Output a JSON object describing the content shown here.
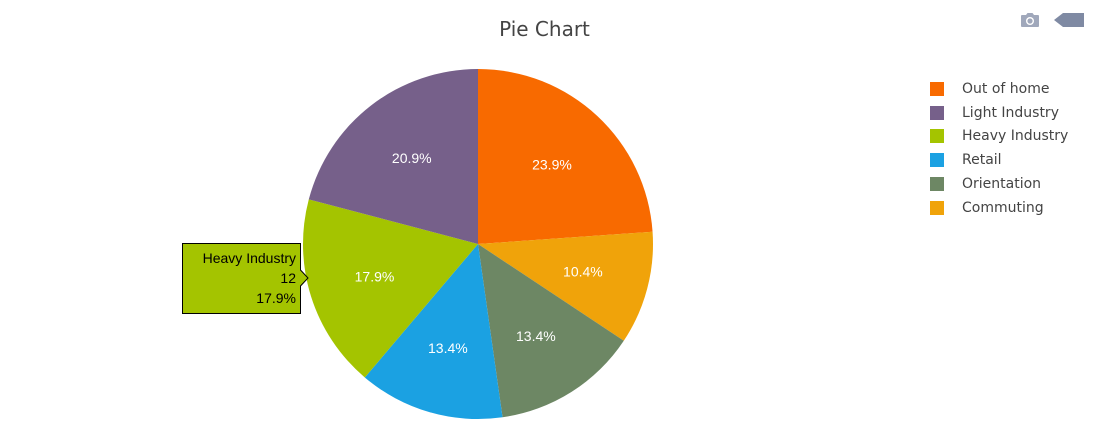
{
  "chart_data": {
    "type": "pie",
    "title": "Pie Chart",
    "slices": [
      {
        "label": "Out of home",
        "value": 16,
        "percent_label": "23.9%",
        "color": "#f86a00"
      },
      {
        "label": "Commuting",
        "value": 7,
        "percent_label": "10.4%",
        "color": "#f0a30a"
      },
      {
        "label": "Orientation",
        "value": 9,
        "percent_label": "13.4%",
        "color": "#6d8764"
      },
      {
        "label": "Retail",
        "value": 9,
        "percent_label": "13.4%",
        "color": "#1ba1e2"
      },
      {
        "label": "Heavy Industry",
        "value": 12,
        "percent_label": "17.9%",
        "color": "#a4c400"
      },
      {
        "label": "Light Industry",
        "value": 14,
        "percent_label": "20.9%",
        "color": "#76608a"
      }
    ],
    "direction": "clockwise",
    "legend": {
      "placement": "top-right",
      "entries": [
        "Out of home",
        "Light Industry",
        "Heavy Industry",
        "Retail",
        "Orientation",
        "Commuting"
      ]
    },
    "hover": {
      "label": "Heavy Industry",
      "value": "12",
      "percent": "17.9%",
      "color": "#a4c400"
    }
  },
  "modebar": {
    "icons": [
      "camera-icon",
      "collapse-arrow-icon"
    ],
    "icon_color": "#a0a8bb"
  }
}
